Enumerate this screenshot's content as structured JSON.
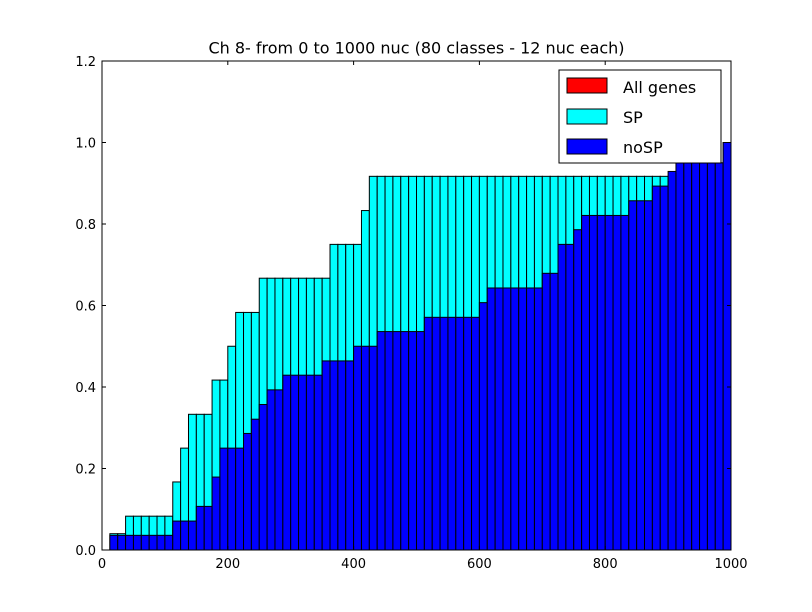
{
  "chart_data": {
    "type": "bar",
    "title": "Ch 8- from 0 to 1000 nuc (80 classes - 12 nuc each)",
    "xlabel": "",
    "ylabel": "",
    "xlim": [
      0,
      1000
    ],
    "ylim": [
      0,
      1.2
    ],
    "x_ticks": [
      0,
      200,
      400,
      600,
      800,
      1000
    ],
    "y_ticks": [
      0.0,
      0.2,
      0.4,
      0.6,
      0.8,
      1.0,
      1.2
    ],
    "x_tick_labels": [
      "0",
      "200",
      "400",
      "600",
      "800",
      "1000"
    ],
    "y_tick_labels": [
      "0.0",
      "0.2",
      "0.4",
      "0.6",
      "0.8",
      "1.0",
      "1.2"
    ],
    "legend_position": "top-right",
    "bin_width": 12.5,
    "bin_starts": [
      12.5,
      25,
      37.5,
      50,
      62.5,
      75,
      87.5,
      100,
      112.5,
      125,
      137.5,
      150,
      162.5,
      175,
      187.5,
      200,
      212.5,
      225,
      237.5,
      250,
      262.5,
      275,
      287.5,
      300,
      312.5,
      325,
      337.5,
      350,
      362.5,
      375,
      387.5,
      400,
      412.5,
      425,
      437.5,
      450,
      462.5,
      475,
      487.5,
      500,
      512.5,
      525,
      537.5,
      550,
      562.5,
      575,
      587.5,
      600,
      612.5,
      625,
      637.5,
      650,
      662.5,
      675,
      687.5,
      700,
      712.5,
      725,
      737.5,
      750,
      762.5,
      775,
      787.5,
      800,
      812.5,
      825,
      837.5,
      850,
      862.5,
      875,
      887.5,
      900,
      912.5,
      925,
      937.5,
      950,
      962.5,
      975,
      987.5
    ],
    "series": [
      {
        "name": "SP",
        "color": "#00ffff",
        "values": [
          0.04,
          0.04,
          0.083,
          0.083,
          0.083,
          0.083,
          0.083,
          0.083,
          0.167,
          0.25,
          0.333,
          0.333,
          0.333,
          0.417,
          0.417,
          0.5,
          0.583,
          0.583,
          0.583,
          0.667,
          0.667,
          0.667,
          0.667,
          0.667,
          0.667,
          0.667,
          0.667,
          0.667,
          0.75,
          0.75,
          0.75,
          0.75,
          0.833,
          0.917,
          0.917,
          0.917,
          0.917,
          0.917,
          0.917,
          0.917,
          0.917,
          0.917,
          0.917,
          0.917,
          0.917,
          0.917,
          0.917,
          0.917,
          0.917,
          0.917,
          0.917,
          0.917,
          0.917,
          0.917,
          0.917,
          0.917,
          0.917,
          0.917,
          0.917,
          0.917,
          0.917,
          0.917,
          0.917,
          0.917,
          0.917,
          0.917,
          0.917,
          0.917,
          0.917,
          0.917,
          0.917,
          0.917,
          0.917,
          0.95,
          0.95,
          0.95,
          0.95,
          0.95,
          1.0
        ]
      },
      {
        "name": "noSP",
        "color": "#0000ff",
        "values": [
          0.036,
          0.036,
          0.036,
          0.036,
          0.036,
          0.036,
          0.036,
          0.036,
          0.071,
          0.071,
          0.071,
          0.107,
          0.107,
          0.179,
          0.25,
          0.25,
          0.25,
          0.286,
          0.321,
          0.357,
          0.393,
          0.393,
          0.429,
          0.429,
          0.429,
          0.429,
          0.429,
          0.464,
          0.464,
          0.464,
          0.464,
          0.5,
          0.5,
          0.5,
          0.536,
          0.536,
          0.536,
          0.536,
          0.536,
          0.536,
          0.571,
          0.571,
          0.571,
          0.571,
          0.571,
          0.571,
          0.571,
          0.607,
          0.643,
          0.643,
          0.643,
          0.643,
          0.643,
          0.643,
          0.643,
          0.679,
          0.679,
          0.75,
          0.75,
          0.786,
          0.821,
          0.821,
          0.821,
          0.821,
          0.821,
          0.821,
          0.857,
          0.857,
          0.857,
          0.893,
          0.893,
          0.929,
          0.95,
          0.95,
          0.95,
          0.95,
          0.95,
          0.95,
          1.0
        ]
      },
      {
        "name": "All genes",
        "color": "#ff0000",
        "values": []
      }
    ],
    "legend": [
      "All genes",
      "SP",
      "noSP"
    ]
  }
}
